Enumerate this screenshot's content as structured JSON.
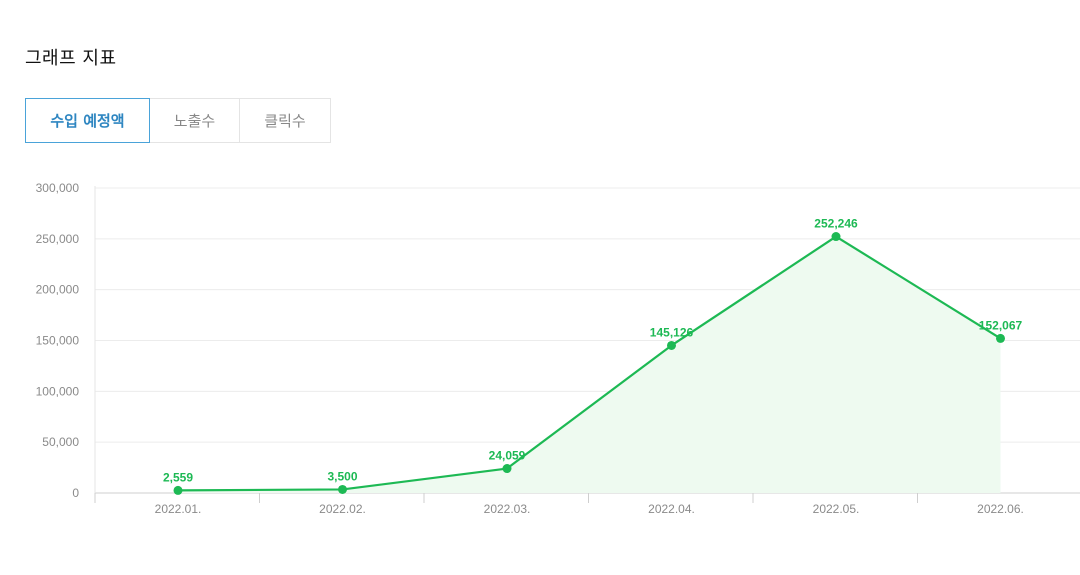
{
  "header": {
    "title": "그래프 지표"
  },
  "tabs": [
    {
      "label": "수입 예정액",
      "active": true
    },
    {
      "label": "노출수",
      "active": false
    },
    {
      "label": "클릭수",
      "active": false
    }
  ],
  "colors": {
    "line": "#1db954",
    "area": "#eefaf0",
    "active_tab": "#2e86c1",
    "grid": "#ececec"
  },
  "chart_data": {
    "type": "line",
    "categories": [
      "2022.01.",
      "2022.02.",
      "2022.03.",
      "2022.04.",
      "2022.05.",
      "2022.06."
    ],
    "values": [
      2559,
      3500,
      24059,
      145126,
      252246,
      152067
    ],
    "value_labels": [
      "2,559",
      "3,500",
      "24,059",
      "145,126",
      "252,246",
      "152,067"
    ],
    "y_ticks": [
      0,
      50000,
      100000,
      150000,
      200000,
      250000,
      300000
    ],
    "y_tick_labels": [
      "0",
      "50,000",
      "100,000",
      "150,000",
      "200,000",
      "250,000",
      "300,000"
    ],
    "ylim": [
      0,
      300000
    ],
    "grid": true,
    "area_fill": true,
    "title": "",
    "xlabel": "",
    "ylabel": ""
  }
}
